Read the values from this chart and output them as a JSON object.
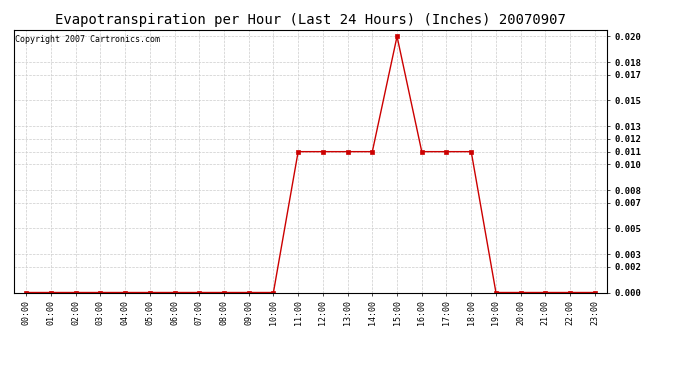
{
  "title": "Evapotranspiration per Hour (Last 24 Hours) (Inches) 20070907",
  "copyright_text": "Copyright 2007 Cartronics.com",
  "hours": [
    0,
    1,
    2,
    3,
    4,
    5,
    6,
    7,
    8,
    9,
    10,
    11,
    12,
    13,
    14,
    15,
    16,
    17,
    18,
    19,
    20,
    21,
    22,
    23
  ],
  "hour_labels": [
    "00:00",
    "01:00",
    "02:00",
    "03:00",
    "04:00",
    "05:00",
    "06:00",
    "07:00",
    "08:00",
    "09:00",
    "10:00",
    "11:00",
    "12:00",
    "13:00",
    "14:00",
    "15:00",
    "16:00",
    "17:00",
    "18:00",
    "19:00",
    "20:00",
    "21:00",
    "22:00",
    "23:00"
  ],
  "values": [
    0.0,
    0.0,
    0.0,
    0.0,
    0.0,
    0.0,
    0.0,
    0.0,
    0.0,
    0.0,
    0.0,
    0.011,
    0.011,
    0.011,
    0.011,
    0.02,
    0.011,
    0.011,
    0.011,
    0.0,
    0.0,
    0.0,
    0.0,
    0.0
  ],
  "line_color": "#cc0000",
  "marker": "s",
  "marker_size": 2.5,
  "marker_color": "#cc0000",
  "ylim": [
    0.0,
    0.0205
  ],
  "yticks": [
    0.0,
    0.002,
    0.003,
    0.005,
    0.007,
    0.008,
    0.01,
    0.011,
    0.012,
    0.013,
    0.015,
    0.017,
    0.018,
    0.02
  ],
  "grid_color": "#cccccc",
  "bg_color": "#ffffff",
  "title_fontsize": 10,
  "copyright_fontsize": 6,
  "tick_fontsize": 6,
  "ytick_fontsize": 6.5
}
